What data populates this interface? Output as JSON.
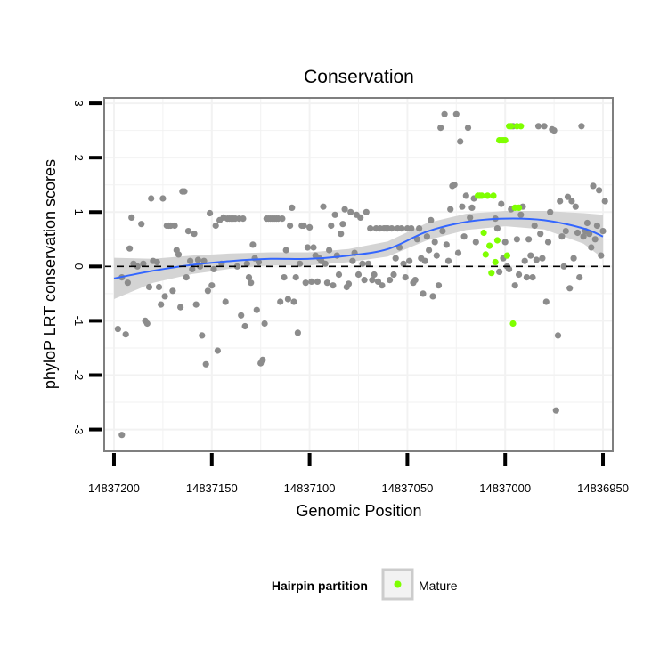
{
  "chart_data": {
    "type": "scatter",
    "title": "Conservation",
    "xlabel": "Genomic Position",
    "ylabel": "phyloP LRT conservation scores",
    "xlim": [
      14837205,
      14836945
    ],
    "ylim": [
      -3.4,
      3.1
    ],
    "x_reversed": true,
    "x_ticks": [
      14837200,
      14837150,
      14837100,
      14837050,
      14837000,
      14836950
    ],
    "x_tick_labels": [
      "14837200",
      "14837150",
      "14837100",
      "14837050",
      "14837000",
      "14836950"
    ],
    "y_ticks": [
      -3,
      -2,
      -1,
      0,
      1,
      2,
      3
    ],
    "y_tick_labels": [
      "-3",
      "-2",
      "-1",
      "0",
      "1",
      "2",
      "3"
    ],
    "grid": true,
    "reference_line": {
      "y": 0,
      "style": "dashed"
    },
    "legend": {
      "title": "Hairpin partition",
      "position": "bottom",
      "entries": [
        {
          "label": "Mature",
          "color": "#7fff00"
        }
      ]
    },
    "colors": {
      "background_points": "#8c8c8c",
      "mature": "#7fff00",
      "smooth_line": "#3366ff",
      "confidence_band": "#d4d4d4",
      "grid": "#f2f2f2",
      "panel_border": "#7f7f7f"
    },
    "series": [
      {
        "name": "Background",
        "color": "#8c8c8c",
        "points": [
          [
            14837196,
            -3.1
          ],
          [
            14837198,
            -1.15
          ],
          [
            14837194,
            -1.25
          ],
          [
            14837196,
            -0.2
          ],
          [
            14837193,
            -0.3
          ],
          [
            14837192,
            0.33
          ],
          [
            14837191,
            0.9
          ],
          [
            14837190,
            0.05
          ],
          [
            14837188,
            0.0
          ],
          [
            14837186,
            0.78
          ],
          [
            14837185,
            0.05
          ],
          [
            14837184,
            -1.0
          ],
          [
            14837183,
            -1.05
          ],
          [
            14837182,
            -0.38
          ],
          [
            14837181,
            1.25
          ],
          [
            14837180,
            0.1
          ],
          [
            14837178,
            0.08
          ],
          [
            14837177,
            -0.38
          ],
          [
            14837176,
            -0.7
          ],
          [
            14837175,
            1.25
          ],
          [
            14837174,
            -0.55
          ],
          [
            14837173,
            0.75
          ],
          [
            14837172,
            0.75
          ],
          [
            14837171,
            0.75
          ],
          [
            14837170,
            -0.45
          ],
          [
            14837169,
            0.75
          ],
          [
            14837168,
            0.3
          ],
          [
            14837167,
            0.22
          ],
          [
            14837166,
            -0.75
          ],
          [
            14837165,
            1.38
          ],
          [
            14837164,
            1.38
          ],
          [
            14837163,
            -0.2
          ],
          [
            14837162,
            0.65
          ],
          [
            14837161,
            0.1
          ],
          [
            14837160,
            -0.05
          ],
          [
            14837159,
            0.6
          ],
          [
            14837158,
            -0.7
          ],
          [
            14837157,
            0.12
          ],
          [
            14837156,
            0.0
          ],
          [
            14837155,
            -1.27
          ],
          [
            14837154,
            0.1
          ],
          [
            14837153,
            -1.8
          ],
          [
            14837152,
            -0.45
          ],
          [
            14837151,
            0.98
          ],
          [
            14837150,
            -0.35
          ],
          [
            14837149,
            -0.05
          ],
          [
            14837148,
            0.75
          ],
          [
            14837147,
            -1.55
          ],
          [
            14837146,
            0.85
          ],
          [
            14837145,
            0.05
          ],
          [
            14837144,
            0.9
          ],
          [
            14837143,
            -0.65
          ],
          [
            14837142,
            0.88
          ],
          [
            14837141,
            0.88
          ],
          [
            14837140,
            0.88
          ],
          [
            14837139,
            0.88
          ],
          [
            14837138,
            0.88
          ],
          [
            14837137,
            0.0
          ],
          [
            14837136,
            0.88
          ],
          [
            14837135,
            -0.9
          ],
          [
            14837134,
            0.88
          ],
          [
            14837133,
            -1.1
          ],
          [
            14837132,
            0.05
          ],
          [
            14837131,
            -0.2
          ],
          [
            14837130,
            -0.3
          ],
          [
            14837129,
            0.4
          ],
          [
            14837128,
            0.15
          ],
          [
            14837127,
            -0.8
          ],
          [
            14837126,
            0.08
          ],
          [
            14837125,
            -1.78
          ],
          [
            14837124,
            -1.72
          ],
          [
            14837123,
            -1.05
          ],
          [
            14837122,
            0.88
          ],
          [
            14837121,
            0.88
          ],
          [
            14837120,
            0.88
          ],
          [
            14837119,
            0.88
          ],
          [
            14837118,
            0.88
          ],
          [
            14837117,
            0.88
          ],
          [
            14837116,
            0.88
          ],
          [
            14837115,
            -0.65
          ],
          [
            14837114,
            0.88
          ],
          [
            14837113,
            -0.2
          ],
          [
            14837112,
            0.3
          ],
          [
            14837111,
            -0.6
          ],
          [
            14837110,
            0.75
          ],
          [
            14837109,
            1.08
          ],
          [
            14837108,
            -0.65
          ],
          [
            14837107,
            -0.2
          ],
          [
            14837106,
            -1.22
          ],
          [
            14837105,
            0.05
          ],
          [
            14837104,
            0.75
          ],
          [
            14837103,
            0.75
          ],
          [
            14837102,
            -0.3
          ],
          [
            14837101,
            0.35
          ],
          [
            14837100,
            0.72
          ],
          [
            14837099,
            -0.28
          ],
          [
            14837098,
            0.35
          ],
          [
            14837097,
            0.2
          ],
          [
            14837096,
            -0.28
          ],
          [
            14837095,
            0.15
          ],
          [
            14837094,
            0.1
          ],
          [
            14837093,
            1.1
          ],
          [
            14837092,
            0.05
          ],
          [
            14837091,
            -0.3
          ],
          [
            14837090,
            0.3
          ],
          [
            14837089,
            0.75
          ],
          [
            14837088,
            -0.35
          ],
          [
            14837087,
            0.95
          ],
          [
            14837086,
            0.2
          ],
          [
            14837085,
            -0.15
          ],
          [
            14837084,
            0.6
          ],
          [
            14837083,
            0.78
          ],
          [
            14837082,
            1.05
          ],
          [
            14837081,
            -0.38
          ],
          [
            14837080,
            -0.32
          ],
          [
            14837079,
            1.0
          ],
          [
            14837078,
            0.1
          ],
          [
            14837077,
            0.25
          ],
          [
            14837076,
            0.95
          ],
          [
            14837075,
            -0.15
          ],
          [
            14837074,
            0.9
          ],
          [
            14837073,
            0.05
          ],
          [
            14837072,
            -0.25
          ],
          [
            14837071,
            1.0
          ],
          [
            14837070,
            0.05
          ],
          [
            14837069,
            0.7
          ],
          [
            14837068,
            -0.25
          ],
          [
            14837067,
            -0.15
          ],
          [
            14837066,
            0.7
          ],
          [
            14837065,
            -0.28
          ],
          [
            14837064,
            0.7
          ],
          [
            14837063,
            -0.35
          ],
          [
            14837062,
            0.7
          ],
          [
            14837061,
            0.7
          ],
          [
            14837060,
            0.7
          ],
          [
            14837059,
            -0.25
          ],
          [
            14837058,
            0.7
          ],
          [
            14837057,
            -0.15
          ],
          [
            14837056,
            0.15
          ],
          [
            14837055,
            0.7
          ],
          [
            14837054,
            0.35
          ],
          [
            14837053,
            0.7
          ],
          [
            14837052,
            0.05
          ],
          [
            14837051,
            -0.2
          ],
          [
            14837050,
            0.7
          ],
          [
            14837049,
            0.1
          ],
          [
            14837048,
            0.7
          ],
          [
            14837047,
            -0.3
          ],
          [
            14837046,
            -0.25
          ],
          [
            14837045,
            0.5
          ],
          [
            14837044,
            0.7
          ],
          [
            14837043,
            0.15
          ],
          [
            14837042,
            -0.5
          ],
          [
            14837041,
            0.1
          ],
          [
            14837040,
            0.55
          ],
          [
            14837039,
            0.3
          ],
          [
            14837038,
            0.85
          ],
          [
            14837037,
            -0.55
          ],
          [
            14837036,
            0.45
          ],
          [
            14837035,
            0.2
          ],
          [
            14837034,
            -0.35
          ],
          [
            14837033,
            2.55
          ],
          [
            14837032,
            0.65
          ],
          [
            14837031,
            2.8
          ],
          [
            14837030,
            0.4
          ],
          [
            14837029,
            0.1
          ],
          [
            14837028,
            1.05
          ],
          [
            14837027,
            1.48
          ],
          [
            14837026,
            1.5
          ],
          [
            14837025,
            2.8
          ],
          [
            14837024,
            0.25
          ],
          [
            14837023,
            2.3
          ],
          [
            14837022,
            1.1
          ],
          [
            14837021,
            0.55
          ],
          [
            14837020,
            1.3
          ],
          [
            14837019,
            2.55
          ],
          [
            14837018,
            0.9
          ],
          [
            14837017,
            1.08
          ],
          [
            14837016,
            1.25
          ],
          [
            14837015,
            0.45
          ],
          [
            14837005,
            0.88
          ],
          [
            14837004,
            0.7
          ],
          [
            14837003,
            -0.1
          ],
          [
            14837002,
            1.15
          ],
          [
            14837001,
            0.15
          ],
          [
            14837000,
            0.45
          ],
          [
            14836999,
            0.0
          ],
          [
            14836998,
            -0.05
          ],
          [
            14836997,
            1.05
          ],
          [
            14836996,
            2.58
          ],
          [
            14836995,
            -0.35
          ],
          [
            14836994,
            0.5
          ],
          [
            14836993,
            -0.15
          ],
          [
            14836992,
            0.95
          ],
          [
            14836991,
            1.1
          ],
          [
            14836990,
            0.1
          ],
          [
            14836989,
            -0.2
          ],
          [
            14836988,
            0.5
          ],
          [
            14836987,
            0.2
          ],
          [
            14836986,
            -0.2
          ],
          [
            14836985,
            0.75
          ],
          [
            14836984,
            0.12
          ],
          [
            14836983,
            2.58
          ],
          [
            14836982,
            0.6
          ],
          [
            14836981,
            0.15
          ],
          [
            14836980,
            2.58
          ],
          [
            14836979,
            -0.65
          ],
          [
            14836978,
            0.45
          ],
          [
            14836977,
            1.0
          ],
          [
            14836976,
            2.52
          ],
          [
            14836975,
            2.5
          ],
          [
            14836974,
            -2.65
          ],
          [
            14836973,
            -1.27
          ],
          [
            14836972,
            1.2
          ],
          [
            14836971,
            0.55
          ],
          [
            14836970,
            0.0
          ],
          [
            14836969,
            0.65
          ],
          [
            14836968,
            1.28
          ],
          [
            14836967,
            -0.4
          ],
          [
            14836966,
            1.2
          ],
          [
            14836965,
            0.15
          ],
          [
            14836964,
            1.1
          ],
          [
            14836963,
            0.62
          ],
          [
            14836962,
            -0.2
          ],
          [
            14836961,
            2.58
          ],
          [
            14836960,
            0.55
          ],
          [
            14836959,
            0.65
          ],
          [
            14836958,
            0.8
          ],
          [
            14836957,
            0.6
          ],
          [
            14836956,
            0.35
          ],
          [
            14836955,
            1.48
          ],
          [
            14836954,
            0.5
          ],
          [
            14836953,
            0.75
          ],
          [
            14836952,
            1.4
          ],
          [
            14836951,
            0.2
          ],
          [
            14836950,
            0.65
          ],
          [
            14836949,
            1.2
          ]
        ]
      },
      {
        "name": "Mature",
        "color": "#7fff00",
        "points": [
          [
            14837014,
            1.3
          ],
          [
            14837013,
            1.3
          ],
          [
            14837012,
            1.3
          ],
          [
            14837011,
            0.62
          ],
          [
            14837010,
            0.22
          ],
          [
            14837009,
            1.3
          ],
          [
            14837008,
            0.38
          ],
          [
            14837007,
            -0.12
          ],
          [
            14837006,
            1.3
          ],
          [
            14837005,
            0.08
          ],
          [
            14837004,
            0.48
          ],
          [
            14837003,
            2.32
          ],
          [
            14837002,
            2.32
          ],
          [
            14837001,
            2.32
          ],
          [
            14837000,
            2.32
          ],
          [
            14836999,
            0.2
          ],
          [
            14836998,
            2.58
          ],
          [
            14836997,
            2.58
          ],
          [
            14836996,
            -1.05
          ],
          [
            14836995,
            1.08
          ],
          [
            14836994,
            2.58
          ],
          [
            14836993,
            1.08
          ],
          [
            14836992,
            2.58
          ]
        ]
      }
    ],
    "smooth": {
      "x": [
        14837200,
        14837180,
        14837160,
        14837140,
        14837120,
        14837100,
        14837080,
        14837060,
        14837040,
        14837020,
        14837000,
        14836980,
        14836960,
        14836950
      ],
      "y": [
        -0.22,
        -0.08,
        0.03,
        0.1,
        0.14,
        0.14,
        0.2,
        0.32,
        0.64,
        0.82,
        0.88,
        0.85,
        0.7,
        0.55
      ],
      "band": [
        0.38,
        0.22,
        0.17,
        0.14,
        0.12,
        0.12,
        0.12,
        0.14,
        0.16,
        0.15,
        0.14,
        0.17,
        0.28,
        0.4
      ]
    }
  }
}
